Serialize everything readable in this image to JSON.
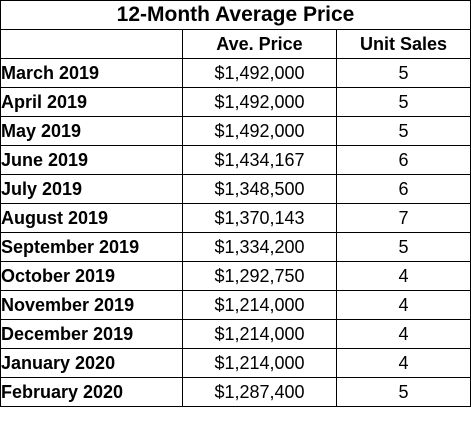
{
  "chart_data": {
    "type": "table",
    "title": "12-Month Average Price",
    "columns": [
      "",
      "Ave. Price",
      "Unit Sales"
    ],
    "rows": [
      {
        "month": "March 2019",
        "price": "$1,492,000",
        "units": "5"
      },
      {
        "month": "April 2019",
        "price": "$1,492,000",
        "units": "5"
      },
      {
        "month": "May 2019",
        "price": "$1,492,000",
        "units": "5"
      },
      {
        "month": "June 2019",
        "price": "$1,434,167",
        "units": "6"
      },
      {
        "month": "July 2019",
        "price": "$1,348,500",
        "units": "6"
      },
      {
        "month": "August 2019",
        "price": "$1,370,143",
        "units": "7"
      },
      {
        "month": "September 2019",
        "price": "$1,334,200",
        "units": "5"
      },
      {
        "month": "October 2019",
        "price": "$1,292,750",
        "units": "4"
      },
      {
        "month": "November 2019",
        "price": "$1,214,000",
        "units": "4"
      },
      {
        "month": "December 2019",
        "price": "$1,214,000",
        "units": "4"
      },
      {
        "month": "January 2020",
        "price": "$1,214,000",
        "units": "4"
      },
      {
        "month": "February 2020",
        "price": "$1,287,400",
        "units": "5"
      }
    ]
  }
}
